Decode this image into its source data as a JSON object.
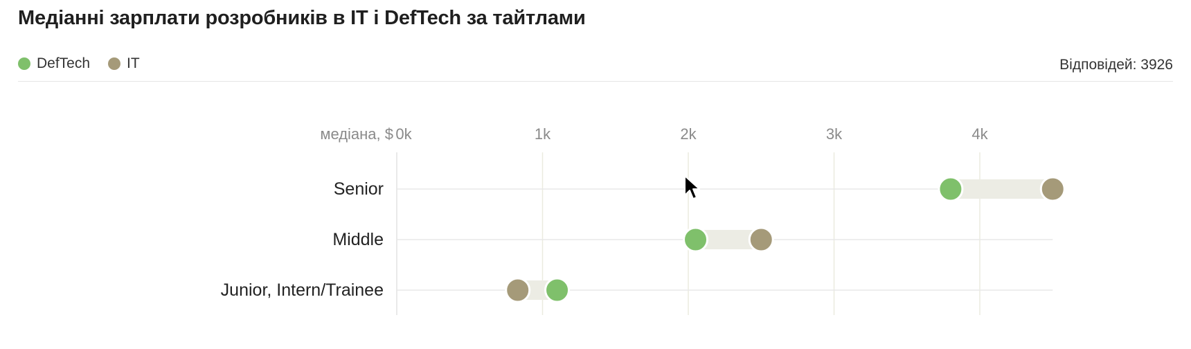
{
  "title": "Медіанні зарплати розробників в IT і DefTech за тайтлами",
  "legend": [
    {
      "name": "DefTech",
      "color": "#7fc06b"
    },
    {
      "name": "IT",
      "color": "#a59a79"
    }
  ],
  "responses_label": "Відповідей: 3926",
  "chart_data": {
    "type": "dumbbell",
    "axis_label": "медіана, $",
    "x_ticks": [
      {
        "value": 0,
        "label": "0k"
      },
      {
        "value": 1000,
        "label": "1k"
      },
      {
        "value": 2000,
        "label": "2k"
      },
      {
        "value": 3000,
        "label": "3k"
      },
      {
        "value": 4000,
        "label": "4k"
      }
    ],
    "xlim": [
      0,
      4500
    ],
    "categories": [
      "Senior",
      "Middle",
      "Junior, Intern/Trainee"
    ],
    "series": [
      {
        "name": "DefTech",
        "color": "#7fc06b",
        "values": [
          3800,
          2050,
          1100
        ]
      },
      {
        "name": "IT",
        "color": "#a59a79",
        "values": [
          4500,
          2500,
          830
        ]
      }
    ],
    "grid": true
  }
}
